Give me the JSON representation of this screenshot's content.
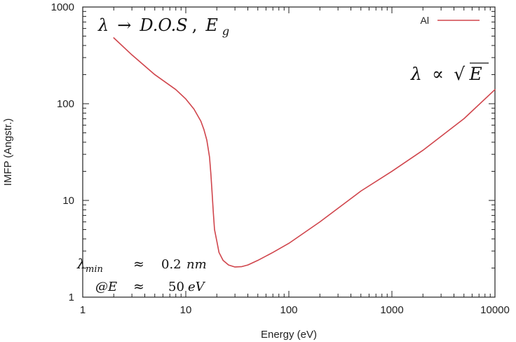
{
  "chart_data": {
    "type": "line",
    "title": "",
    "xlabel": "Energy (eV)",
    "ylabel": "IMFP (Angstr.)",
    "xscale": "log",
    "yscale": "log",
    "xlim": [
      1,
      10000
    ],
    "ylim": [
      1,
      1000
    ],
    "grid": false,
    "legend": "top-right",
    "x_tick_labels": [
      "1",
      "10",
      "100",
      "1000",
      "10000"
    ],
    "y_tick_labels": [
      "1",
      "10",
      "100",
      "1000"
    ],
    "series": [
      {
        "name": "Al",
        "color": "#d0454c",
        "x": [
          2,
          3,
          5,
          8,
          10,
          12,
          14,
          15,
          16,
          17,
          17.5,
          18,
          18.5,
          19,
          20,
          21,
          23,
          26,
          30,
          35,
          40,
          50,
          70,
          100,
          200,
          500,
          1000,
          2000,
          5000,
          10000
        ],
        "y": [
          480,
          320,
          200,
          140,
          112,
          88,
          66,
          54,
          42,
          28,
          19,
          12,
          7.5,
          5,
          3.8,
          2.9,
          2.4,
          2.15,
          2.05,
          2.07,
          2.15,
          2.4,
          2.9,
          3.6,
          6,
          12.5,
          20,
          33,
          70,
          140
        ]
      }
    ],
    "annotations": {
      "top_left": {
        "lambda": "λ",
        "arrow": "→",
        "dos": "D.O.S",
        "comma": ",",
        "E": "E",
        "sub": "g"
      },
      "top_right": {
        "lambda": "λ",
        "prop": "∝",
        "radical": "√",
        "E": "E"
      },
      "bottom_left": {
        "row1": {
          "lambda": "λ",
          "sub": "min",
          "approx": "≈",
          "value": "0.2",
          "unit": "nm"
        },
        "row2": {
          "symbol": "@E",
          "approx": "≈",
          "value": "50",
          "unit": "eV"
        }
      }
    }
  }
}
